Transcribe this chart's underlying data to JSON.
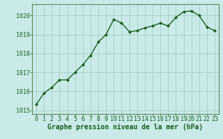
{
  "x": [
    0,
    1,
    2,
    3,
    4,
    5,
    6,
    7,
    8,
    9,
    10,
    11,
    12,
    13,
    14,
    15,
    16,
    17,
    18,
    19,
    20,
    21,
    22,
    23
  ],
  "y": [
    1015.3,
    1015.9,
    1016.2,
    1016.6,
    1016.6,
    1017.0,
    1017.4,
    1017.9,
    1018.6,
    1019.0,
    1019.8,
    1019.6,
    1019.15,
    1019.2,
    1019.35,
    1019.45,
    1019.6,
    1019.45,
    1019.9,
    1020.2,
    1020.25,
    1020.0,
    1019.4,
    1019.2
  ],
  "line_color": "#1a5e1a",
  "marker": "D",
  "marker_size": 2.0,
  "bg_color": "#c8eae8",
  "grid_color": "#9ec8c4",
  "xlabel": "Graphe pression niveau de la mer (hPa)",
  "xlabel_fontsize": 7,
  "yticks": [
    1015,
    1016,
    1017,
    1018,
    1019,
    1020
  ],
  "xticks": [
    0,
    1,
    2,
    3,
    4,
    5,
    6,
    7,
    8,
    9,
    10,
    11,
    12,
    13,
    14,
    15,
    16,
    17,
    18,
    19,
    20,
    21,
    22,
    23
  ],
  "ylim": [
    1014.8,
    1020.6
  ],
  "xlim": [
    -0.5,
    23.5
  ],
  "tick_color": "#1a5e1a",
  "tick_fontsize": 6,
  "spine_color": "#5a8a5a",
  "linewidth": 1.0
}
